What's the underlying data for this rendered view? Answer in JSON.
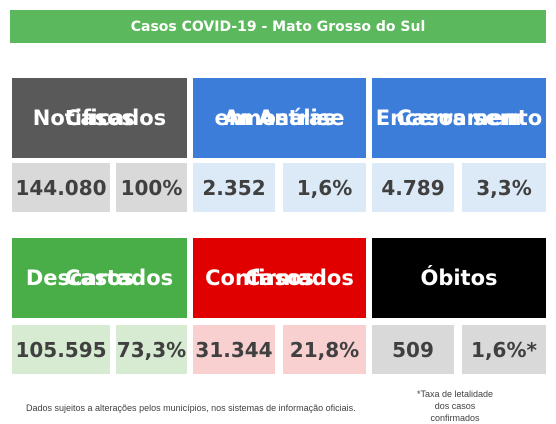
{
  "header": {
    "title": "Casos COVID-19 - Mato Grosso do Sul"
  },
  "cards": [
    {
      "title": [
        "Casos",
        "Notificados"
      ],
      "value": "144.080",
      "percent": "100%"
    },
    {
      "title": [
        "Amostras",
        "em Análise"
      ],
      "value": "2.352",
      "percent": "1,6%"
    },
    {
      "title": [
        "Casos sem",
        "Encerramento"
      ],
      "value": "4.789",
      "percent": "3,3%"
    },
    {
      "title": [
        "Casos",
        "Descartados"
      ],
      "value": "105.595",
      "percent": "73,3%"
    },
    {
      "title": [
        "Casos",
        "Confirmados"
      ],
      "value": "31.344",
      "percent": "21,8%"
    },
    {
      "title": [
        "Óbitos"
      ],
      "value": "509",
      "percent": "1,6%*"
    }
  ],
  "footnote": [
    "*Taxa de letalidade",
    "dos casos confirmados"
  ],
  "disclaimer": "Dados sujeitos a alterações pelos municípios, nos sistemas de informação oficiais."
}
